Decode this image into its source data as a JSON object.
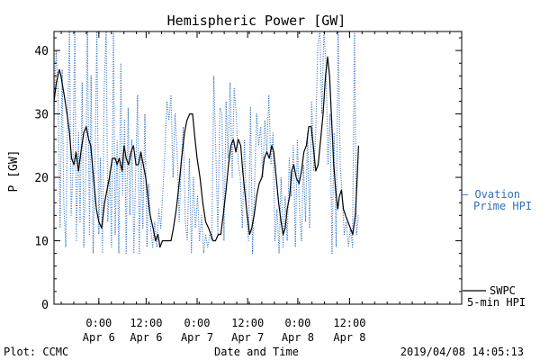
{
  "chart_data": {
    "type": "line",
    "title": "Hemispheric Power [GW]",
    "xlabel": "Date and Time",
    "ylabel": "P [GW]",
    "ylim": [
      0,
      43
    ],
    "xlim": [
      0,
      100
    ],
    "y_ticks": [
      0,
      10,
      20,
      30,
      40
    ],
    "x_ticks": [
      {
        "x": 11,
        "time": "0:00",
        "date": "Apr 6"
      },
      {
        "x": 22.6,
        "time": "12:00",
        "date": "Apr 6"
      },
      {
        "x": 35.1,
        "time": "0:00",
        "date": "Apr 7"
      },
      {
        "x": 47.5,
        "time": "12:00",
        "date": "Apr 7"
      },
      {
        "x": 59.8,
        "time": "0:00",
        "date": "Apr 8"
      },
      {
        "x": 72.5,
        "time": "12:00",
        "date": "Apr 8"
      }
    ],
    "grid": false,
    "legend": [
      {
        "label_line1": "— Ovation",
        "label_line2": "Prime HPI",
        "color": "#2d6fc2",
        "style": "dotted"
      },
      {
        "label_line1": "SWPC",
        "label_line2": "5-min HPI",
        "color": "#000000",
        "style": "solid"
      }
    ],
    "series": [
      {
        "name": "SWPC 5-min HPI",
        "color": "#000000",
        "style": "solid",
        "points": [
          [
            0,
            32
          ],
          [
            0.6,
            35
          ],
          [
            1.3,
            37
          ],
          [
            1.7,
            36
          ],
          [
            2.5,
            33
          ],
          [
            3.2,
            30
          ],
          [
            3.8,
            27
          ],
          [
            4.3,
            23
          ],
          [
            4.9,
            22
          ],
          [
            5.4,
            24
          ],
          [
            6,
            21
          ],
          [
            6.6,
            24
          ],
          [
            7.3,
            27
          ],
          [
            7.9,
            28
          ],
          [
            8.5,
            26
          ],
          [
            9,
            25
          ],
          [
            9.7,
            20
          ],
          [
            10.4,
            15
          ],
          [
            11,
            13
          ],
          [
            11.7,
            12
          ],
          [
            12.4,
            16
          ],
          [
            13,
            18
          ],
          [
            13.6,
            20
          ],
          [
            14.3,
            23
          ],
          [
            15,
            23
          ],
          [
            15.5,
            22
          ],
          [
            16,
            23
          ],
          [
            16.7,
            21
          ],
          [
            17.2,
            25
          ],
          [
            17.7,
            23
          ],
          [
            18.3,
            22
          ],
          [
            18.9,
            24
          ],
          [
            19.5,
            25
          ],
          [
            20.1,
            22
          ],
          [
            20.7,
            22
          ],
          [
            21.3,
            24
          ],
          [
            21.9,
            22
          ],
          [
            22.5,
            20
          ],
          [
            23,
            17
          ],
          [
            23.6,
            14
          ],
          [
            24.3,
            12
          ],
          [
            24.9,
            10
          ],
          [
            25.5,
            11
          ],
          [
            26,
            9
          ],
          [
            26.6,
            10
          ],
          [
            27.3,
            10
          ],
          [
            28,
            10
          ],
          [
            28.7,
            10
          ],
          [
            29.3,
            12
          ],
          [
            30,
            15
          ],
          [
            30.7,
            19
          ],
          [
            31.3,
            23
          ],
          [
            32,
            27
          ],
          [
            32.6,
            29
          ],
          [
            33.3,
            30
          ],
          [
            34,
            30
          ],
          [
            34.6,
            26
          ],
          [
            35.1,
            23
          ],
          [
            35.8,
            20
          ],
          [
            36.5,
            16
          ],
          [
            37.2,
            13
          ],
          [
            37.9,
            12
          ],
          [
            38.5,
            11
          ],
          [
            39,
            10
          ],
          [
            39.6,
            10
          ],
          [
            40.3,
            11
          ],
          [
            40.9,
            11
          ],
          [
            41.5,
            14
          ],
          [
            42.2,
            18
          ],
          [
            42.8,
            22
          ],
          [
            43.4,
            25
          ],
          [
            44,
            26
          ],
          [
            44.6,
            24
          ],
          [
            45.2,
            26
          ],
          [
            45.8,
            25
          ],
          [
            46.3,
            21
          ],
          [
            46.9,
            17
          ],
          [
            47.4,
            14
          ],
          [
            48,
            11
          ],
          [
            48.5,
            12
          ],
          [
            49.1,
            14
          ],
          [
            49.7,
            17
          ],
          [
            50.3,
            19
          ],
          [
            51,
            20
          ],
          [
            51.6,
            23
          ],
          [
            52.2,
            24
          ],
          [
            52.8,
            23
          ],
          [
            53.4,
            25
          ],
          [
            53.9,
            24
          ],
          [
            54.5,
            20
          ],
          [
            55.1,
            16
          ],
          [
            55.7,
            13
          ],
          [
            56.2,
            11
          ],
          [
            56.7,
            12
          ],
          [
            57.2,
            15
          ],
          [
            57.8,
            17
          ],
          [
            58.3,
            21
          ],
          [
            58.8,
            22
          ],
          [
            59.4,
            20
          ],
          [
            60.1,
            19
          ],
          [
            60.7,
            21
          ],
          [
            61.3,
            24
          ],
          [
            61.9,
            25
          ],
          [
            62.5,
            28
          ],
          [
            63.1,
            28
          ],
          [
            63.6,
            25
          ],
          [
            64.2,
            21
          ],
          [
            64.8,
            22
          ],
          [
            65.4,
            26
          ],
          [
            66,
            30
          ],
          [
            66.6,
            36
          ],
          [
            67.1,
            39
          ],
          [
            67.6,
            36
          ],
          [
            68.1,
            29
          ],
          [
            68.6,
            22
          ],
          [
            69.1,
            18
          ],
          [
            69.6,
            15
          ],
          [
            70,
            17
          ],
          [
            70.5,
            18
          ],
          [
            71,
            15
          ],
          [
            71.5,
            14
          ],
          [
            72.1,
            13
          ],
          [
            72.7,
            12
          ],
          [
            73.3,
            11
          ],
          [
            73.9,
            14
          ],
          [
            74.3,
            19
          ],
          [
            74.7,
            25
          ]
        ]
      },
      {
        "name": "Ovation Prime HPI",
        "color": "#2d6fc2",
        "style": "dotted",
        "points": [
          [
            0,
            29
          ],
          [
            0.5,
            40
          ],
          [
            1,
            34
          ],
          [
            1.5,
            12
          ],
          [
            2,
            37
          ],
          [
            2.4,
            16
          ],
          [
            2.9,
            9
          ],
          [
            3.3,
            28
          ],
          [
            3.8,
            43
          ],
          [
            4.2,
            14
          ],
          [
            4.6,
            20
          ],
          [
            5.1,
            43
          ],
          [
            5.5,
            10
          ],
          [
            6,
            27
          ],
          [
            6.4,
            13
          ],
          [
            6.9,
            35
          ],
          [
            7.3,
            9
          ],
          [
            7.8,
            21
          ],
          [
            8.2,
            43
          ],
          [
            8.7,
            11
          ],
          [
            9.1,
            36
          ],
          [
            9.6,
            8
          ],
          [
            10.1,
            24
          ],
          [
            10.5,
            43
          ],
          [
            11,
            11
          ],
          [
            11.4,
            23
          ],
          [
            11.9,
            8
          ],
          [
            12.3,
            34
          ],
          [
            12.8,
            43
          ],
          [
            13.2,
            13
          ],
          [
            13.7,
            21
          ],
          [
            14.1,
            9
          ],
          [
            14.6,
            43
          ],
          [
            15,
            11
          ],
          [
            15.5,
            26
          ],
          [
            15.9,
            8
          ],
          [
            16.4,
            38
          ],
          [
            16.8,
            17
          ],
          [
            17.3,
            29
          ],
          [
            17.7,
            8
          ],
          [
            18.2,
            31
          ],
          [
            18.6,
            14
          ],
          [
            19.1,
            26
          ],
          [
            19.6,
            8
          ],
          [
            20,
            20
          ],
          [
            20.5,
            33
          ],
          [
            20.9,
            8
          ],
          [
            21.4,
            24
          ],
          [
            21.8,
            12
          ],
          [
            22.3,
            30
          ],
          [
            22.8,
            9
          ],
          [
            23.2,
            19
          ],
          [
            23.7,
            12
          ],
          [
            24.2,
            9
          ],
          [
            24.7,
            13
          ],
          [
            25.2,
            9
          ],
          [
            25.7,
            15
          ],
          [
            26.2,
            12
          ],
          [
            26.7,
            18
          ],
          [
            27.2,
            24
          ],
          [
            27.7,
            32
          ],
          [
            28.2,
            29
          ],
          [
            28.7,
            33
          ],
          [
            29.2,
            20
          ],
          [
            29.7,
            30
          ],
          [
            30.2,
            24
          ],
          [
            30.7,
            13
          ],
          [
            31.2,
            22
          ],
          [
            31.7,
            28
          ],
          [
            32.2,
            13
          ],
          [
            32.7,
            10
          ],
          [
            33.2,
            23
          ],
          [
            33.7,
            8
          ],
          [
            34.2,
            20
          ],
          [
            34.7,
            12
          ],
          [
            35.2,
            17
          ],
          [
            35.7,
            10
          ],
          [
            36.2,
            14
          ],
          [
            36.7,
            8
          ],
          [
            37.2,
            11
          ],
          [
            37.7,
            9
          ],
          [
            38.2,
            11
          ],
          [
            38.7,
            10
          ],
          [
            39.2,
            36
          ],
          [
            39.7,
            24
          ],
          [
            40.2,
            11
          ],
          [
            40.7,
            31
          ],
          [
            41.2,
            30
          ],
          [
            41.7,
            10
          ],
          [
            42.2,
            32
          ],
          [
            42.7,
            23
          ],
          [
            43.2,
            35
          ],
          [
            43.7,
            20
          ],
          [
            44.2,
            34
          ],
          [
            44.7,
            30
          ],
          [
            45.2,
            22
          ],
          [
            45.7,
            20
          ],
          [
            46.2,
            12
          ],
          [
            46.7,
            26
          ],
          [
            47.2,
            15
          ],
          [
            47.7,
            10
          ],
          [
            48.2,
            31
          ],
          [
            48.7,
            8
          ],
          [
            49.2,
            19
          ],
          [
            49.7,
            30
          ],
          [
            50.2,
            25
          ],
          [
            50.7,
            28
          ],
          [
            51.2,
            20
          ],
          [
            51.7,
            29
          ],
          [
            52.2,
            24
          ],
          [
            52.7,
            33
          ],
          [
            53.2,
            22
          ],
          [
            53.7,
            27
          ],
          [
            54.2,
            10
          ],
          [
            54.7,
            15
          ],
          [
            55.2,
            8
          ],
          [
            55.7,
            20
          ],
          [
            56.2,
            9
          ],
          [
            56.7,
            17
          ],
          [
            57.2,
            10
          ],
          [
            57.7,
            23
          ],
          [
            58.2,
            17
          ],
          [
            58.7,
            25
          ],
          [
            59.2,
            9
          ],
          [
            59.7,
            26
          ],
          [
            60.2,
            15
          ],
          [
            60.7,
            10
          ],
          [
            61.2,
            22
          ],
          [
            61.7,
            13
          ],
          [
            62.2,
            27
          ],
          [
            62.7,
            12
          ],
          [
            63.2,
            32
          ],
          [
            63.7,
            21
          ],
          [
            64.2,
            27
          ],
          [
            64.7,
            41
          ],
          [
            65.2,
            43
          ],
          [
            65.7,
            30
          ],
          [
            66.2,
            43
          ],
          [
            66.7,
            38
          ],
          [
            67.2,
            22
          ],
          [
            67.7,
            30
          ],
          [
            68.2,
            8
          ],
          [
            68.7,
            27
          ],
          [
            69.2,
            9
          ],
          [
            69.7,
            43
          ],
          [
            70.2,
            22
          ],
          [
            70.7,
            17
          ],
          [
            71.2,
            11
          ],
          [
            71.7,
            13
          ],
          [
            72.2,
            9
          ],
          [
            72.7,
            12
          ],
          [
            73.2,
            9
          ],
          [
            73.7,
            43
          ],
          [
            74.2,
            11
          ],
          [
            74.7,
            14
          ]
        ]
      }
    ]
  },
  "footer": {
    "plot_credit": "Plot: CCMC",
    "timestamp": "2019/04/08 14:05:13"
  }
}
